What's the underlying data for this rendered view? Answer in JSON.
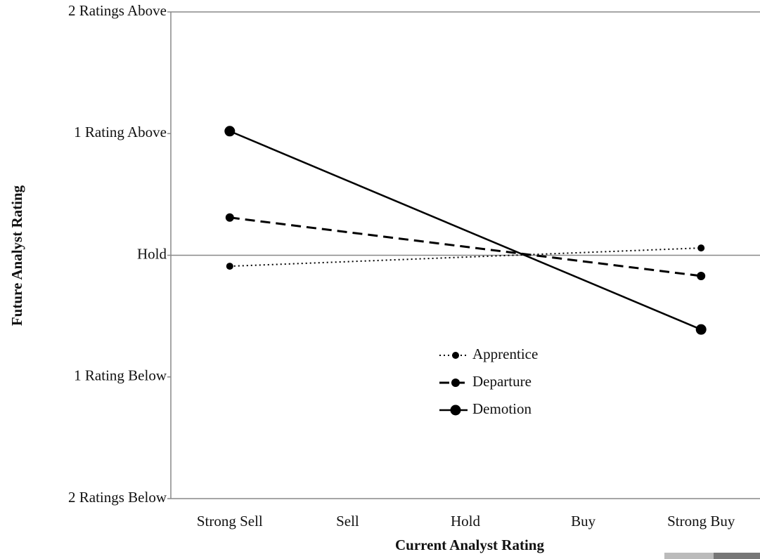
{
  "chart_data": {
    "type": "line",
    "xlabel": "Current Analyst Rating",
    "ylabel": "Future Analyst Rating",
    "xlim": [
      -0.5,
      4.5
    ],
    "xticks": [
      {
        "value": 0,
        "label": "Strong Sell"
      },
      {
        "value": 1,
        "label": "Sell"
      },
      {
        "value": 2,
        "label": "Hold"
      },
      {
        "value": 3,
        "label": "Buy"
      },
      {
        "value": 4,
        "label": "Strong Buy"
      }
    ],
    "ylim": [
      -2,
      2
    ],
    "yticks": [
      {
        "value": -2,
        "label": "2 Ratings Below"
      },
      {
        "value": -1,
        "label": "1 Rating Below"
      },
      {
        "value": 0,
        "label": "Hold"
      },
      {
        "value": 1,
        "label": "1 Rating Above"
      },
      {
        "value": 2,
        "label": "2 Ratings Above"
      }
    ],
    "series": [
      {
        "name": "Apprentice",
        "color": "#000000",
        "dash": "dotted",
        "x": [
          0,
          4
        ],
        "values": [
          -0.09,
          0.06
        ]
      },
      {
        "name": "Departure",
        "color": "#000000",
        "dash": "dashed",
        "x": [
          0,
          4
        ],
        "values": [
          0.31,
          -0.17
        ]
      },
      {
        "name": "Demotion",
        "color": "#000000",
        "dash": "solid",
        "x": [
          0,
          4
        ],
        "values": [
          1.02,
          -0.61
        ]
      }
    ]
  }
}
